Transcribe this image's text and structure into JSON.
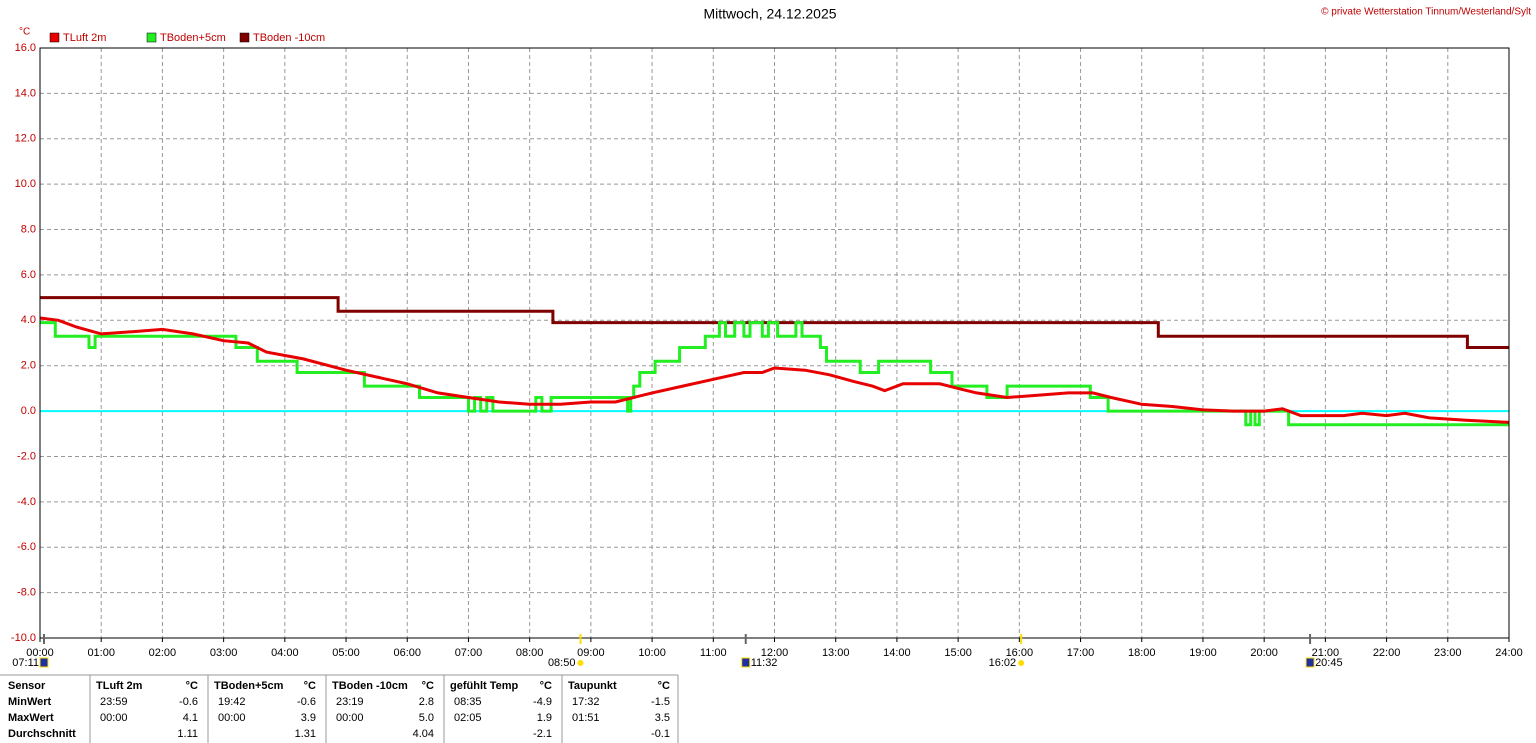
{
  "chart_data": {
    "type": "line",
    "title": "Mittwoch, 24.12.2025",
    "copyright": "© private Wetterstation Tinnum/Westerland/Sylt",
    "y_unit": "°C",
    "xlim": [
      0,
      24
    ],
    "ylim": [
      -10,
      16
    ],
    "xticks": [
      {
        "value": 0,
        "label": "00:00"
      },
      {
        "value": 1,
        "label": "01:00"
      },
      {
        "value": 2,
        "label": "02:00"
      },
      {
        "value": 3,
        "label": "03:00"
      },
      {
        "value": 4,
        "label": "04:00"
      },
      {
        "value": 5,
        "label": "05:00"
      },
      {
        "value": 6,
        "label": "06:00"
      },
      {
        "value": 7,
        "label": "07:00"
      },
      {
        "value": 8,
        "label": "08:00"
      },
      {
        "value": 9,
        "label": "09:00"
      },
      {
        "value": 10,
        "label": "10:00"
      },
      {
        "value": 11,
        "label": "11:00"
      },
      {
        "value": 12,
        "label": "12:00"
      },
      {
        "value": 13,
        "label": "13:00"
      },
      {
        "value": 14,
        "label": "14:00"
      },
      {
        "value": 15,
        "label": "15:00"
      },
      {
        "value": 16,
        "label": "16:00"
      },
      {
        "value": 17,
        "label": "17:00"
      },
      {
        "value": 18,
        "label": "18:00"
      },
      {
        "value": 19,
        "label": "19:00"
      },
      {
        "value": 20,
        "label": "20:00"
      },
      {
        "value": 21,
        "label": "21:00"
      },
      {
        "value": 22,
        "label": "22:00"
      },
      {
        "value": 23,
        "label": "23:00"
      },
      {
        "value": 24,
        "label": "24:00"
      }
    ],
    "yticks": [
      {
        "value": -10,
        "label": "-10.0"
      },
      {
        "value": -8,
        "label": "-8.0"
      },
      {
        "value": -6,
        "label": "-6.0"
      },
      {
        "value": -4,
        "label": "-4.0"
      },
      {
        "value": -2,
        "label": "-2.0"
      },
      {
        "value": 0,
        "label": "0.0"
      },
      {
        "value": 2,
        "label": "2.0"
      },
      {
        "value": 4,
        "label": "4.0"
      },
      {
        "value": 6,
        "label": "6.0"
      },
      {
        "value": 8,
        "label": "8.0"
      },
      {
        "value": 10,
        "label": "10.0"
      },
      {
        "value": 12,
        "label": "12.0"
      },
      {
        "value": 14,
        "label": "14.0"
      },
      {
        "value": 16,
        "label": "16.0"
      }
    ],
    "grid": true,
    "reference_line": {
      "value": 0,
      "color": "#00ffff"
    },
    "series": [
      {
        "name": "TLuft 2m",
        "color": "#e80000",
        "x": [
          0,
          0.3,
          0.6,
          1,
          1.5,
          2,
          2.5,
          3,
          3.4,
          3.7,
          4.3,
          5,
          5.5,
          6,
          6.5,
          7,
          7.5,
          8,
          8.5,
          9,
          9.4,
          10,
          10.5,
          11,
          11.5,
          11.8,
          12,
          12.5,
          12.9,
          13.3,
          13.6,
          13.8,
          14.1,
          14.7,
          15,
          15.3,
          15.8,
          16.3,
          16.8,
          17.2,
          17.5,
          18,
          18.5,
          19,
          19.5,
          20,
          20.3,
          20.6,
          21.3,
          21.6,
          22,
          22.3,
          22.7,
          23.3,
          24
        ],
        "values": [
          4.1,
          4.0,
          3.7,
          3.4,
          3.5,
          3.6,
          3.4,
          3.1,
          3.0,
          2.6,
          2.3,
          1.8,
          1.5,
          1.2,
          0.8,
          0.6,
          0.4,
          0.3,
          0.3,
          0.4,
          0.4,
          0.8,
          1.1,
          1.4,
          1.7,
          1.7,
          1.9,
          1.8,
          1.6,
          1.3,
          1.1,
          0.9,
          1.2,
          1.2,
          1.0,
          0.8,
          0.6,
          0.7,
          0.8,
          0.8,
          0.6,
          0.3,
          0.2,
          0.05,
          0,
          0,
          0.1,
          -0.2,
          -0.2,
          -0.1,
          -0.2,
          -0.1,
          -0.3,
          -0.4,
          -0.5
        ]
      },
      {
        "name": "TBoden+5cm",
        "color": "#22ee22",
        "x": [
          0,
          0.25,
          0.25,
          0.8,
          0.8,
          0.9,
          0.9,
          3.2,
          3.2,
          3.55,
          3.55,
          4.2,
          4.2,
          5.3,
          5.3,
          6.2,
          6.2,
          7.0,
          7.0,
          7.1,
          7.1,
          7.2,
          7.2,
          7.3,
          7.3,
          7.4,
          7.4,
          8.1,
          8.1,
          8.2,
          8.2,
          8.35,
          8.35,
          9.6,
          9.6,
          9.65,
          9.65,
          9.7,
          9.7,
          9.8,
          9.8,
          10.05,
          10.05,
          10.45,
          10.45,
          10.87,
          10.87,
          11.1,
          11.1,
          11.2,
          11.2,
          11.35,
          11.35,
          11.5,
          11.5,
          11.6,
          11.6,
          11.8,
          11.8,
          11.9,
          11.9,
          12.05,
          12.05,
          12.35,
          12.35,
          12.45,
          12.45,
          12.75,
          12.75,
          12.85,
          12.85,
          13.4,
          13.4,
          13.7,
          13.7,
          14.55,
          14.55,
          14.9,
          14.9,
          15.47,
          15.47,
          15.8,
          15.8,
          17.16,
          17.16,
          17.45,
          17.45,
          19.7,
          19.7,
          19.78,
          19.78,
          19.85,
          19.85,
          19.92,
          19.92,
          20.4,
          20.4,
          24
        ],
        "values": [
          3.9,
          3.9,
          3.3,
          3.3,
          2.8,
          2.8,
          3.3,
          3.3,
          2.8,
          2.8,
          2.2,
          2.2,
          1.7,
          1.7,
          1.1,
          1.1,
          0.6,
          0.6,
          0,
          0,
          0.6,
          0.6,
          0,
          0,
          0.6,
          0.6,
          0,
          0,
          0.6,
          0.6,
          0,
          0,
          0.6,
          0.6,
          0,
          0,
          0.6,
          0.6,
          1.1,
          1.1,
          1.7,
          1.7,
          2.2,
          2.2,
          2.8,
          2.8,
          3.3,
          3.3,
          3.9,
          3.9,
          3.3,
          3.3,
          3.9,
          3.9,
          3.3,
          3.3,
          3.9,
          3.9,
          3.3,
          3.3,
          3.9,
          3.9,
          3.3,
          3.3,
          3.9,
          3.9,
          3.3,
          3.3,
          2.8,
          2.8,
          2.2,
          2.2,
          1.7,
          1.7,
          2.2,
          2.2,
          1.7,
          1.7,
          1.1,
          1.1,
          0.6,
          0.6,
          1.1,
          1.1,
          0.6,
          0.6,
          0,
          0,
          -0.6,
          -0.6,
          0,
          0,
          -0.6,
          -0.6,
          0,
          0,
          -0.6,
          -0.6
        ]
      },
      {
        "name": "TBoden -10cm",
        "color": "#800000",
        "x": [
          0,
          4.87,
          4.87,
          8.38,
          8.38,
          18.27,
          18.27,
          23.32,
          23.32,
          24
        ],
        "values": [
          5,
          5,
          4.4,
          4.4,
          3.9,
          3.9,
          3.3,
          3.3,
          2.8,
          2.8
        ]
      }
    ],
    "events": [
      {
        "x": 0,
        "label": "07:11",
        "kind": "moon"
      },
      {
        "x": 8.83,
        "label": "08:50",
        "kind": "sun"
      },
      {
        "x": 11.53,
        "label": "11:32",
        "kind": "moon"
      },
      {
        "x": 16.03,
        "label": "16:02",
        "kind": "sun"
      },
      {
        "x": 20.75,
        "label": "20:45",
        "kind": "moon"
      }
    ]
  },
  "table": {
    "header": [
      "Sensor",
      "TLuft 2m",
      "°C",
      "TBoden+5cm",
      "°C",
      "TBoden -10cm",
      "°C",
      "gefühlt Temp",
      "°C",
      "Taupunkt",
      "°C"
    ],
    "rows": [
      [
        "MinWert",
        "23:59",
        "-0.6",
        "19:42",
        "-0.6",
        "23:19",
        "2.8",
        "08:35",
        "-4.9",
        "17:32",
        "-1.5"
      ],
      [
        "MaxWert",
        "00:00",
        "4.1",
        "00:00",
        "3.9",
        "00:00",
        "5.0",
        "02:05",
        "1.9",
        "01:51",
        "3.5"
      ],
      [
        "Durchschnitt",
        null,
        "1.11",
        null,
        "1.31",
        null,
        "4.04",
        null,
        "-2.1",
        null,
        "-0.1"
      ]
    ]
  }
}
